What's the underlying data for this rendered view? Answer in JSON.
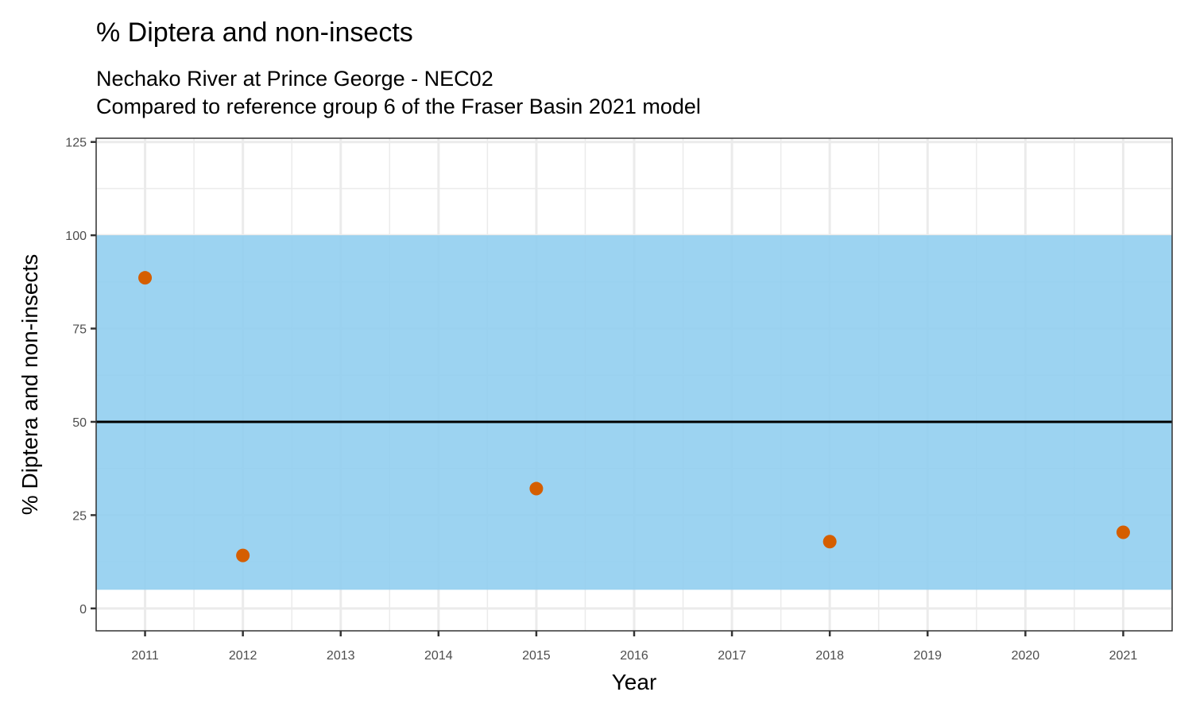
{
  "chart_data": {
    "type": "scatter",
    "title": "% Diptera and non-insects",
    "subtitle_lines": [
      "Nechako River at Prince George - NEC02",
      "Compared to reference group 6 of the Fraser Basin 2021 model"
    ],
    "xlabel": "Year",
    "ylabel": "% Diptera and non-insects",
    "xlim": [
      2010.5,
      2021.5
    ],
    "ylim": [
      -6,
      126
    ],
    "x_ticks": [
      2011,
      2012,
      2013,
      2014,
      2015,
      2016,
      2017,
      2018,
      2019,
      2020,
      2021
    ],
    "y_ticks": [
      0,
      25,
      50,
      75,
      100,
      125
    ],
    "grid": true,
    "reference_band": {
      "low": 5,
      "high": 100,
      "color": "#8ecdef"
    },
    "reference_median": 50,
    "points": [
      {
        "x": 2011,
        "y": 88.6
      },
      {
        "x": 2012,
        "y": 14.2
      },
      {
        "x": 2015,
        "y": 32.1
      },
      {
        "x": 2018,
        "y": 17.9
      },
      {
        "x": 2021,
        "y": 20.4
      }
    ],
    "point_color": "#D55E00"
  }
}
